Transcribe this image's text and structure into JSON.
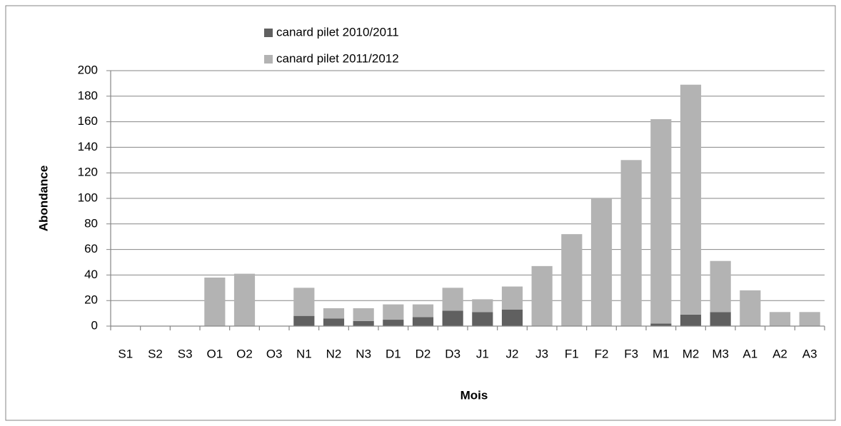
{
  "chart_data": {
    "type": "stacked_bar",
    "x_label": "Mois",
    "y_label": "Abondance",
    "categories": [
      "S1",
      "S2",
      "S3",
      "O1",
      "O2",
      "O3",
      "N1",
      "N2",
      "N3",
      "D1",
      "D2",
      "D3",
      "J1",
      "J2",
      "J3",
      "F1",
      "F2",
      "F3",
      "M1",
      "M2",
      "M3",
      "A1",
      "A2",
      "A3"
    ],
    "series": [
      {
        "name": "canard pilet 2010/2011",
        "color": "#606060",
        "values": [
          0,
          0,
          0,
          0,
          0,
          0,
          8,
          6,
          4,
          5,
          7,
          12,
          11,
          13,
          0,
          0,
          0,
          0,
          2,
          9,
          11,
          0,
          0,
          0
        ]
      },
      {
        "name": "canard pilet 2011/2012",
        "color": "#b3b3b3",
        "values": [
          0,
          0,
          0,
          38,
          41,
          0,
          22,
          8,
          10,
          12,
          10,
          18,
          10,
          18,
          47,
          72,
          100,
          130,
          160,
          180,
          40,
          28,
          11,
          11
        ]
      }
    ],
    "ylim": [
      0,
      200
    ],
    "yticks": [
      0,
      20,
      40,
      60,
      80,
      100,
      120,
      140,
      160,
      180,
      200
    ],
    "grid": true,
    "legend": "top"
  }
}
